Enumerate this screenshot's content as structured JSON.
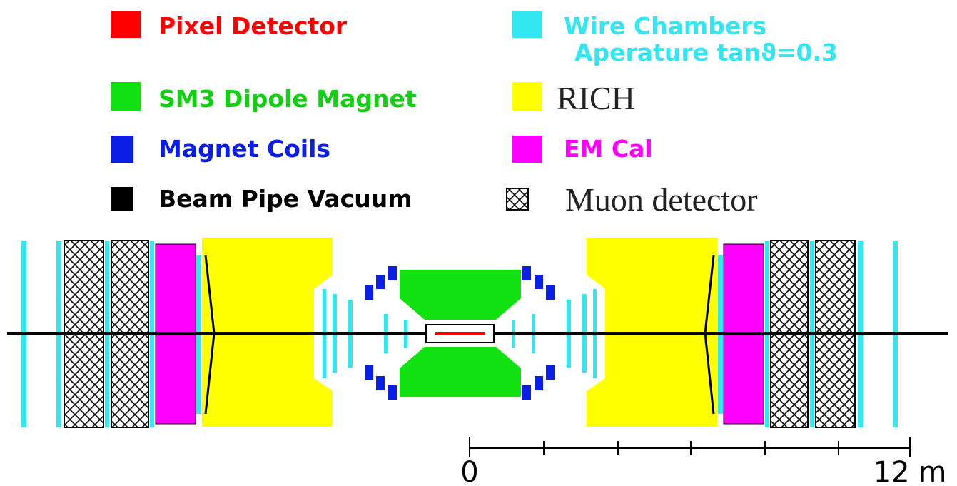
{
  "legend": [
    {
      "label": "Pixel Detector",
      "color": "#ff0000"
    },
    {
      "label": "Wire Chambers",
      "sublabel": "Aperature tanϑ=0.3",
      "color": "#33e6f0"
    },
    {
      "label": "SM3 Dipole Magnet",
      "color": "#11e011"
    },
    {
      "label": "RICH",
      "color": "#ffff00"
    },
    {
      "label": "Magnet Coils",
      "color": "#0a1ee6"
    },
    {
      "label": "EM Cal",
      "color": "#ff00ff"
    },
    {
      "label": "Beam Pipe Vacuum",
      "color": "#000000"
    },
    {
      "label": "Muon detector",
      "color": "#000000"
    }
  ],
  "scale": {
    "start_label": "0",
    "end_label": "12 m"
  }
}
